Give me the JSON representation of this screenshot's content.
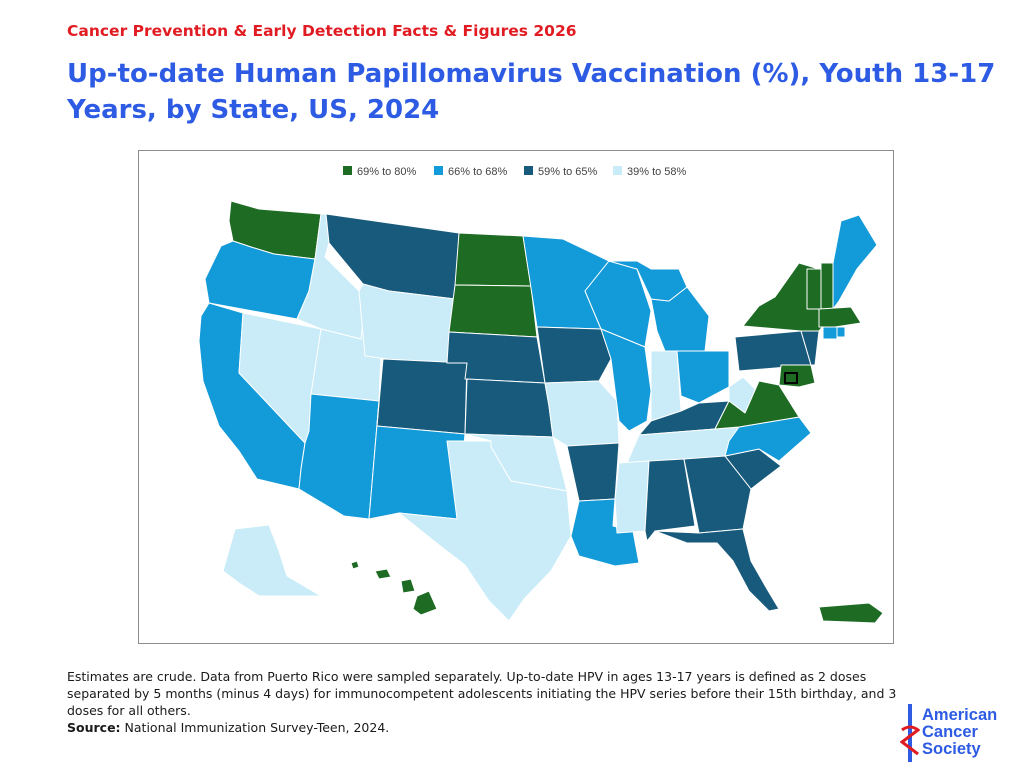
{
  "header": {
    "eyebrow": "Cancer Prevention & Early Detection Facts & Figures 2026",
    "title": "Up-to-date Human Papillomavirus Vaccination (%), Youth 13-17 Years, by State, US, 2024"
  },
  "legend": [
    {
      "label": "69% to 80%",
      "color": "#1e6b24"
    },
    {
      "label": "66% to 68%",
      "color": "#139ad8"
    },
    {
      "label": "59% to 65%",
      "color": "#185a7c"
    },
    {
      "label": "39% to 58%",
      "color": "#c9ecf8"
    }
  ],
  "footnote": {
    "text": "Estimates are crude. Data from Puerto Rico were sampled separately. Up-to-date HPV in ages 13-17 years is defined as 2 doses separated by 5 months (minus 4 days) for immunocompetent adolescents initiating the HPV series before their 15th birthday, and 3 doses for all others.",
    "source_label": "Source:",
    "source_text": "National Immunization Survey-Teen, 2024."
  },
  "logo": {
    "line1": "American",
    "line2": "Cancer",
    "line3": "Society"
  }
}
